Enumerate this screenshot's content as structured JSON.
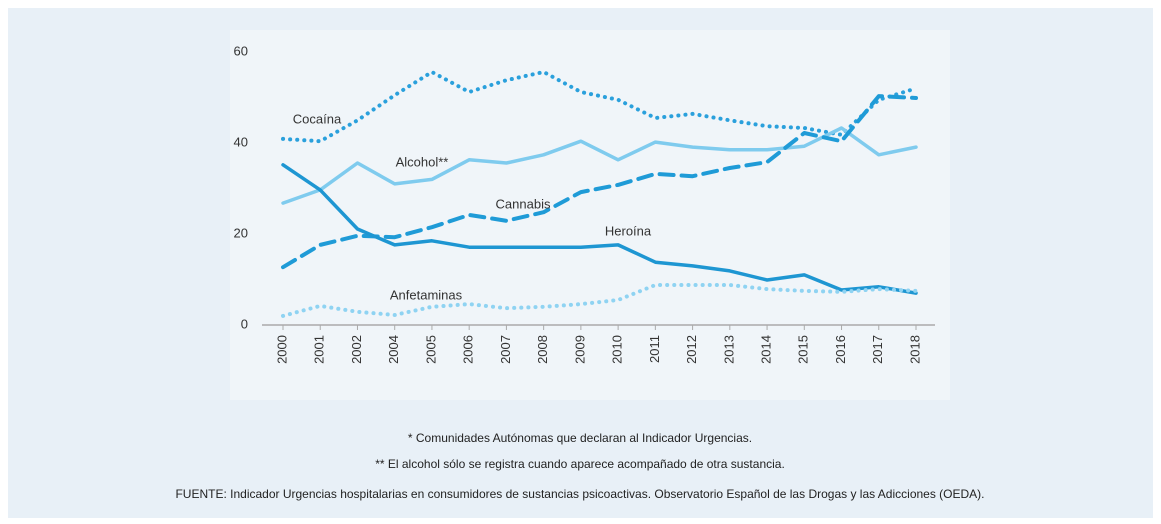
{
  "chart_data": {
    "type": "line",
    "categories": [
      "2000",
      "2001",
      "2002",
      "2004",
      "2005",
      "2006",
      "2007",
      "2008",
      "2009",
      "2010",
      "2011",
      "2012",
      "2013",
      "2014",
      "2015",
      "2016",
      "2017",
      "2018"
    ],
    "series": [
      {
        "name": "Cocaína",
        "color": "#2aa0dc",
        "dash": "dotted",
        "values": [
          40.9,
          40.4,
          45,
          50.5,
          55.6,
          51.2,
          53.8,
          55.6,
          51.2,
          49.5,
          45.5,
          46.4,
          45,
          43.7,
          43.3,
          41.8,
          49.5,
          52
        ]
      },
      {
        "name": "Alcohol**",
        "color": "#7fcbee",
        "dash": "solid",
        "values": [
          26.8,
          29.7,
          35.6,
          31,
          32,
          36.3,
          35.6,
          37.4,
          40.4,
          36.3,
          40.2,
          39.1,
          38.5,
          38.5,
          39.3,
          43.3,
          37.4,
          39.1
        ]
      },
      {
        "name": "Cannabis",
        "color": "#1f9bd7",
        "dash": "dashed",
        "values": [
          12.7,
          17.6,
          19.6,
          19.3,
          21.5,
          24.2,
          22.9,
          24.8,
          29.2,
          30.8,
          33.2,
          32.7,
          34.5,
          35.8,
          42.2,
          40.4,
          50.3,
          49.9
        ]
      },
      {
        "name": "Heroína",
        "color": "#1e96d2",
        "dash": "solid",
        "values": [
          35.2,
          29.7,
          21.1,
          17.6,
          18.5,
          17.1,
          17.1,
          17.1,
          17.1,
          17.6,
          13.8,
          13,
          11.9,
          9.9,
          11,
          7.7,
          8.4,
          7
        ]
      },
      {
        "name": "Anfetaminas",
        "color": "#8fd3f2",
        "dash": "dotted",
        "values": [
          2,
          4.2,
          2.9,
          2.2,
          4,
          4.6,
          3.7,
          4,
          4.6,
          5.5,
          8.8,
          8.8,
          8.8,
          7.9,
          7.5,
          7.3,
          7.9,
          7.5
        ]
      }
    ],
    "ylim": [
      0,
      60
    ],
    "yticks": [
      0,
      20,
      40,
      60
    ],
    "grid": false,
    "notes": [
      "* Comunidades Autónomas que declaran al Indicador Urgencias.",
      "** El alcohol sólo se registra cuando aparece acompañado de otra sustancia."
    ],
    "source": "FUENTE: Indicador Urgencias hospitalarias en consumidores de sustancias psicoactivas. Observatorio Español de las Drogas y las Adicciones (OEDA)."
  }
}
